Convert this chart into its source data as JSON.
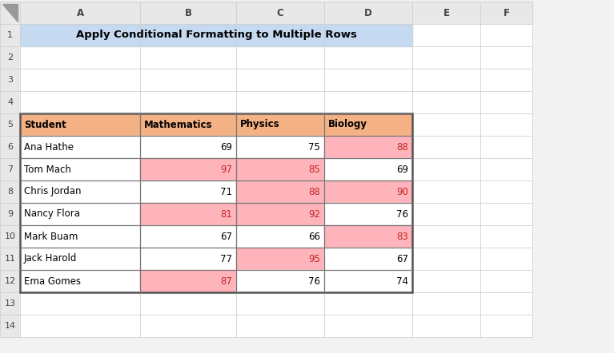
{
  "title": "Apply Conditional Formatting to Multiple Rows",
  "title_bg": "#C5D9F1",
  "col_headers": [
    "Student",
    "Mathematics",
    "Physics",
    "Biology"
  ],
  "col_header_bg": "#F4B183",
  "rows": [
    [
      "Ana Hathe",
      69,
      75,
      88
    ],
    [
      "Tom Mach",
      97,
      85,
      69
    ],
    [
      "Chris Jordan",
      71,
      88,
      90
    ],
    [
      "Nancy Flora",
      81,
      92,
      76
    ],
    [
      "Mark Buam",
      67,
      66,
      83
    ],
    [
      "Jack Harold",
      77,
      95,
      67
    ],
    [
      "Ema Gomes",
      87,
      76,
      74
    ]
  ],
  "highlight_bg": "#FFB3BA",
  "highlight_text": "#C0292A",
  "normal_text": "#000000",
  "threshold": 80,
  "spreadsheet_bg": "#FFFFFF",
  "col_header_bg_row": "#E0E0E0",
  "grid_light": "#D0D0D0",
  "grid_dark": "#888888",
  "fig_bg": "#F2F2F2",
  "row_num_bg": "#E8E8E8",
  "col_letter_bg": "#E8E8E8",
  "fig_w": 7.67,
  "fig_h": 4.42,
  "dpi": 100
}
